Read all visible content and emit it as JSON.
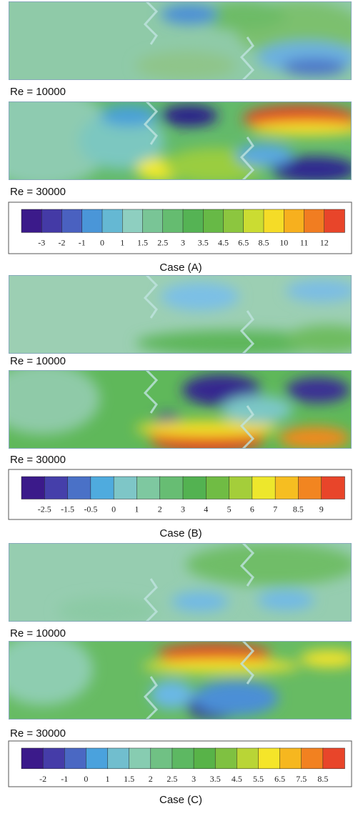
{
  "cases": [
    {
      "panels": [
        {
          "label": "Re = 10000"
        },
        {
          "label": "Re = 30000"
        }
      ],
      "colorbar": {
        "ticks": [
          "-3",
          "-2",
          "-1",
          "0",
          "1",
          "1.5",
          "2.5",
          "3",
          "3.5",
          "4.5",
          "6.5",
          "8.5",
          "10",
          "11",
          "12"
        ]
      },
      "caption": "Case (A)"
    },
    {
      "panels": [
        {
          "label": "Re = 10000"
        },
        {
          "label": "Re = 30000"
        }
      ],
      "colorbar": {
        "ticks": [
          "-2.5",
          "-1.5",
          "-0.5",
          "0",
          "1",
          "2",
          "3",
          "4",
          "5",
          "6",
          "7",
          "8.5",
          "9"
        ]
      },
      "caption": "Case (B)"
    },
    {
      "panels": [
        {
          "label": "Re = 10000"
        },
        {
          "label": "Re = 30000"
        }
      ],
      "colorbar": {
        "ticks": [
          "-2",
          "-1",
          "0",
          "1",
          "1.5",
          "2",
          "2.5",
          "3",
          "3.5",
          "4.5",
          "5.5",
          "6.5",
          "7.5",
          "8.5"
        ]
      },
      "caption": "Case (C)"
    }
  ]
}
